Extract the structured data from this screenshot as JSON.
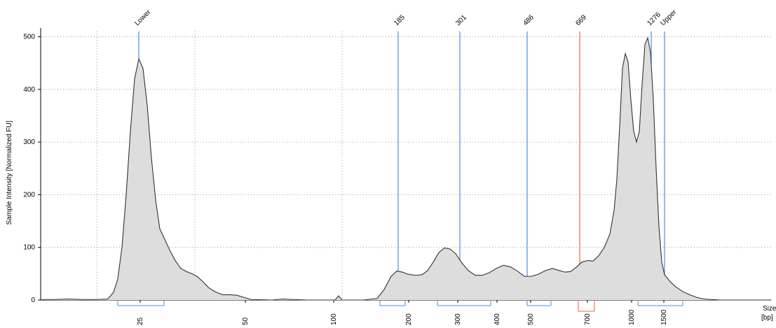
{
  "chart_data": {
    "type": "area",
    "title": "",
    "ylabel": "Sample Intensity [Normalized FU]",
    "xlabel": "Size",
    "xlabel_unit": "[bp]",
    "ylim": [
      0,
      510
    ],
    "yticks": [
      0,
      100,
      200,
      300,
      400,
      500
    ],
    "x_tick_labels": [
      "25",
      "50",
      "100",
      "200",
      "300",
      "400",
      "500",
      "700",
      "1000",
      "1500"
    ],
    "peak_labels": [
      "Lower",
      "185",
      "301",
      "486",
      "669",
      "1276",
      "Upper"
    ],
    "grid": true,
    "colors": {
      "fill": "#dddddd",
      "trace": "#333333",
      "peak_marker": "#4a90e2",
      "selected_marker": "#e8643c"
    },
    "trace_points": [
      [
        0,
        1
      ],
      [
        20,
        1
      ],
      [
        40,
        2
      ],
      [
        60,
        1
      ],
      [
        80,
        1
      ],
      [
        96,
        2
      ],
      [
        104,
        15
      ],
      [
        110,
        40
      ],
      [
        116,
        100
      ],
      [
        122,
        200
      ],
      [
        128,
        320
      ],
      [
        134,
        420
      ],
      [
        140,
        458
      ],
      [
        146,
        440
      ],
      [
        152,
        370
      ],
      [
        158,
        270
      ],
      [
        164,
        190
      ],
      [
        170,
        135
      ],
      [
        176,
        118
      ],
      [
        184,
        95
      ],
      [
        192,
        75
      ],
      [
        200,
        60
      ],
      [
        208,
        54
      ],
      [
        216,
        50
      ],
      [
        224,
        44
      ],
      [
        232,
        34
      ],
      [
        240,
        23
      ],
      [
        250,
        15
      ],
      [
        260,
        10
      ],
      [
        270,
        10
      ],
      [
        280,
        9
      ],
      [
        290,
        5
      ],
      [
        300,
        1
      ],
      [
        330,
        0
      ],
      [
        345,
        2
      ],
      [
        360,
        1
      ],
      [
        380,
        0
      ],
      [
        400,
        0
      ],
      [
        420,
        0
      ],
      [
        425,
        8
      ],
      [
        430,
        0
      ],
      [
        460,
        0
      ],
      [
        480,
        3
      ],
      [
        490,
        20
      ],
      [
        500,
        45
      ],
      [
        508,
        55
      ],
      [
        516,
        53
      ],
      [
        524,
        49
      ],
      [
        534,
        47
      ],
      [
        544,
        48
      ],
      [
        552,
        56
      ],
      [
        560,
        72
      ],
      [
        568,
        90
      ],
      [
        576,
        99
      ],
      [
        584,
        97
      ],
      [
        592,
        88
      ],
      [
        600,
        72
      ],
      [
        610,
        56
      ],
      [
        620,
        47
      ],
      [
        630,
        47
      ],
      [
        640,
        52
      ],
      [
        650,
        60
      ],
      [
        660,
        66
      ],
      [
        670,
        63
      ],
      [
        680,
        55
      ],
      [
        690,
        45
      ],
      [
        700,
        45
      ],
      [
        710,
        49
      ],
      [
        720,
        56
      ],
      [
        730,
        60
      ],
      [
        740,
        56
      ],
      [
        748,
        53
      ],
      [
        756,
        54
      ],
      [
        764,
        62
      ],
      [
        772,
        72
      ],
      [
        780,
        75
      ],
      [
        788,
        74
      ],
      [
        796,
        84
      ],
      [
        804,
        100
      ],
      [
        812,
        125
      ],
      [
        818,
        170
      ],
      [
        822,
        230
      ],
      [
        826,
        330
      ],
      [
        830,
        440
      ],
      [
        834,
        468
      ],
      [
        838,
        452
      ],
      [
        842,
        380
      ],
      [
        846,
        320
      ],
      [
        850,
        300
      ],
      [
        854,
        320
      ],
      [
        858,
        410
      ],
      [
        862,
        485
      ],
      [
        866,
        498
      ],
      [
        870,
        470
      ],
      [
        874,
        380
      ],
      [
        878,
        250
      ],
      [
        882,
        140
      ],
      [
        886,
        72
      ],
      [
        890,
        48
      ],
      [
        898,
        35
      ],
      [
        906,
        25
      ],
      [
        916,
        16
      ],
      [
        926,
        10
      ],
      [
        936,
        5
      ],
      [
        946,
        2
      ],
      [
        956,
        1
      ],
      [
        970,
        0
      ],
      [
        1040,
        0
      ]
    ],
    "peak_positions": [
      {
        "label": "Lower",
        "x": 140,
        "type": "marker"
      },
      {
        "label": "185",
        "x": 510,
        "type": "marker"
      },
      {
        "label": "301",
        "x": 598,
        "type": "marker"
      },
      {
        "label": "486",
        "x": 694,
        "type": "marker"
      },
      {
        "label": "669",
        "x": 769,
        "type": "selected"
      },
      {
        "label": "1276",
        "x": 871,
        "type": "marker"
      },
      {
        "label": "Upper",
        "x": 890,
        "type": "marker"
      }
    ]
  }
}
